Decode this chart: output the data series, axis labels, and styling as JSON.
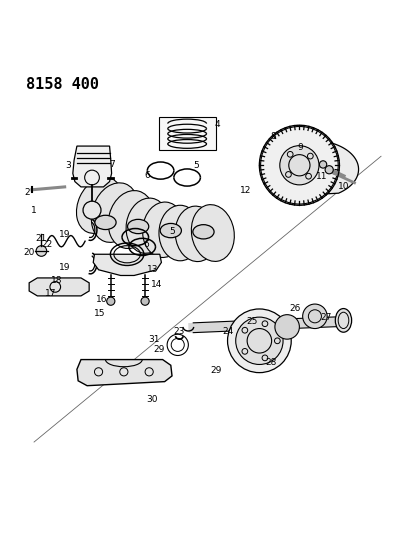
{
  "title": "8158 400",
  "bg_color": "#ffffff",
  "line_color": "#000000",
  "fig_width": 4.11,
  "fig_height": 5.33,
  "dpi": 100
}
